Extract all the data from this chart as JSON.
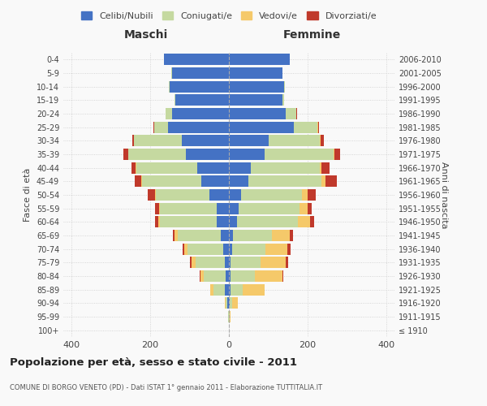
{
  "age_groups": [
    "100+",
    "95-99",
    "90-94",
    "85-89",
    "80-84",
    "75-79",
    "70-74",
    "65-69",
    "60-64",
    "55-59",
    "50-54",
    "45-49",
    "40-44",
    "35-39",
    "30-34",
    "25-29",
    "20-24",
    "15-19",
    "10-14",
    "5-9",
    "0-4"
  ],
  "birth_years": [
    "≤ 1910",
    "1911-1915",
    "1916-1920",
    "1921-1925",
    "1926-1930",
    "1931-1935",
    "1936-1940",
    "1941-1945",
    "1946-1950",
    "1951-1955",
    "1956-1960",
    "1961-1965",
    "1966-1970",
    "1971-1975",
    "1976-1980",
    "1981-1985",
    "1986-1990",
    "1991-1995",
    "1996-2000",
    "2001-2005",
    "2006-2010"
  ],
  "males": {
    "celibi": [
      0,
      1,
      4,
      10,
      8,
      10,
      15,
      20,
      30,
      30,
      50,
      70,
      80,
      110,
      120,
      155,
      145,
      135,
      150,
      145,
      165
    ],
    "coniugati": [
      0,
      1,
      5,
      30,
      55,
      75,
      90,
      110,
      145,
      145,
      135,
      150,
      155,
      145,
      120,
      35,
      15,
      2,
      2,
      1,
      0
    ],
    "vedovi": [
      0,
      0,
      2,
      8,
      10,
      10,
      8,
      8,
      5,
      3,
      3,
      3,
      2,
      1,
      1,
      0,
      0,
      0,
      0,
      0,
      0
    ],
    "divorziati": [
      0,
      0,
      0,
      0,
      2,
      3,
      5,
      5,
      8,
      10,
      18,
      15,
      10,
      12,
      5,
      2,
      1,
      0,
      0,
      0,
      0
    ]
  },
  "females": {
    "nubili": [
      0,
      0,
      3,
      5,
      5,
      5,
      8,
      10,
      20,
      25,
      30,
      50,
      55,
      90,
      100,
      165,
      145,
      135,
      140,
      135,
      155
    ],
    "coniugate": [
      0,
      2,
      5,
      30,
      60,
      75,
      85,
      100,
      155,
      155,
      155,
      185,
      175,
      175,
      130,
      60,
      25,
      5,
      2,
      1,
      0
    ],
    "vedove": [
      0,
      2,
      15,
      55,
      70,
      65,
      55,
      45,
      30,
      20,
      15,
      10,
      5,
      3,
      2,
      2,
      1,
      0,
      0,
      0,
      0
    ],
    "divorziate": [
      0,
      0,
      0,
      0,
      3,
      5,
      8,
      8,
      12,
      10,
      20,
      28,
      20,
      15,
      8,
      2,
      1,
      0,
      0,
      0,
      0
    ]
  },
  "colors": {
    "celibi": "#4472c4",
    "coniugati": "#c5d9a0",
    "vedovi": "#f5c96a",
    "divorziati": "#c0392b"
  },
  "xlim": 420,
  "title": "Popolazione per età, sesso e stato civile - 2011",
  "subtitle": "COMUNE DI BORGO VENETO (PD) - Dati ISTAT 1° gennaio 2011 - Elaborazione TUTTITALIA.IT",
  "xlabel_left": "Maschi",
  "xlabel_right": "Femmine",
  "ylabel_left": "Fasce di età",
  "ylabel_right": "Anni di nascita",
  "bg_color": "#f9f9f9",
  "bar_height": 0.85
}
